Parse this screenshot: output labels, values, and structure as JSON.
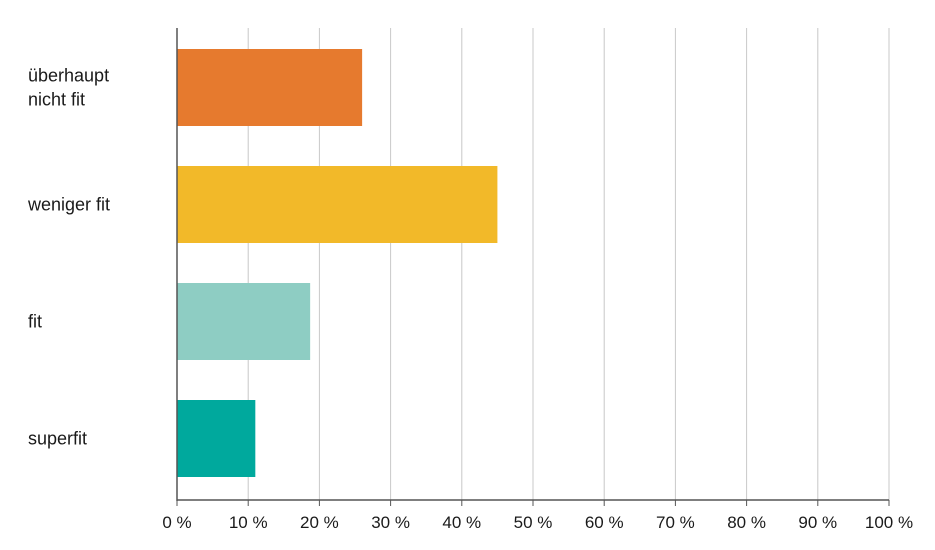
{
  "chart_data": {
    "type": "bar",
    "orientation": "horizontal",
    "categories": [
      [
        "überhaupt",
        "nicht fit"
      ],
      [
        "weniger fit"
      ],
      [
        "fit"
      ],
      [
        "superfit"
      ]
    ],
    "values": [
      26,
      45,
      18.7,
      11
    ],
    "colors": [
      "#E67A2E",
      "#F2B929",
      "#8ECDC3",
      "#00A99D"
    ],
    "xlim": [
      0,
      100
    ],
    "xticks": [
      0,
      10,
      20,
      30,
      40,
      50,
      60,
      70,
      80,
      90,
      100
    ],
    "xtick_labels": [
      "0 %",
      "10 %",
      "20 %",
      "30 %",
      "40 %",
      "50 %",
      "60 %",
      "70 %",
      "80 %",
      "90 %",
      "100 %"
    ],
    "grid": "vertical",
    "title": "",
    "xlabel": "",
    "ylabel": ""
  }
}
